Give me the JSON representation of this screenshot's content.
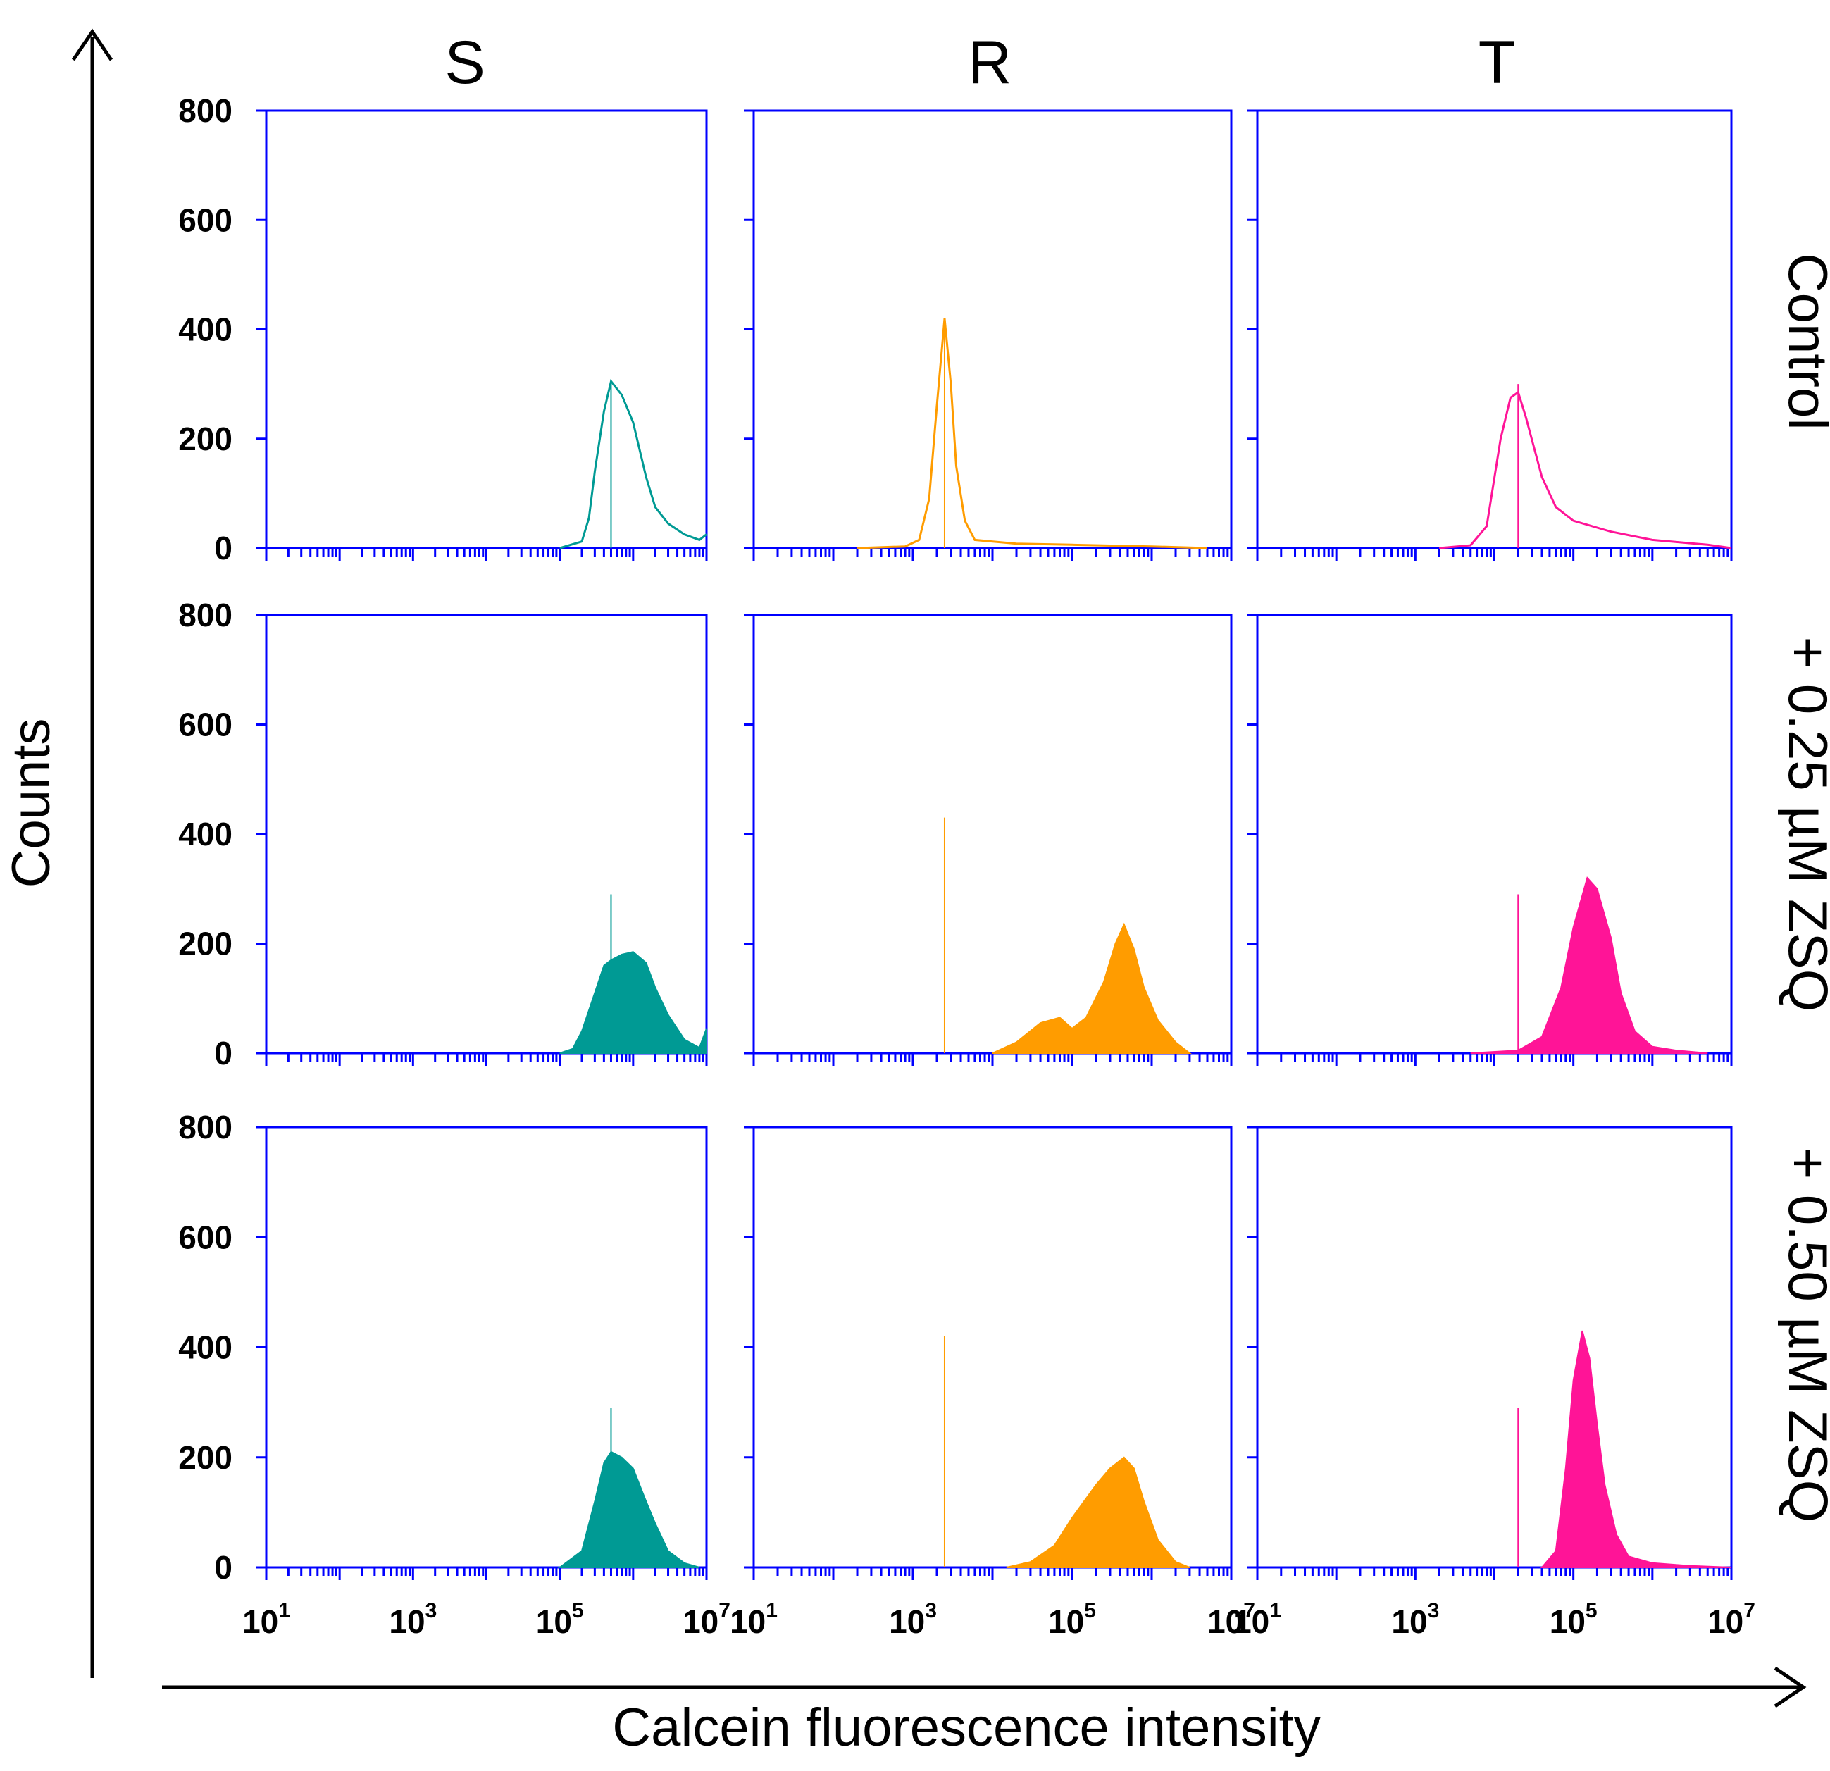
{
  "colors": {
    "S": "#009a94",
    "R": "#ff9c00",
    "T": "#ff1497",
    "frame": "#0000ff",
    "axis": "#000000"
  },
  "labels": {
    "columns": [
      "S",
      "R",
      "T"
    ],
    "rows": [
      "Control",
      "+ 0.25 µM ZSQ",
      "+ 0.50 µM ZSQ"
    ],
    "y_axis": "Counts",
    "x_axis": "Calcein fluorescence intensity",
    "y_ticks": [
      "0",
      "200",
      "400",
      "600",
      "800"
    ],
    "x_ticks": [
      {
        "base": "10",
        "exp": "1"
      },
      {
        "base": "10",
        "exp": "3"
      },
      {
        "base": "10",
        "exp": "5"
      },
      {
        "base": "10",
        "exp": "7"
      }
    ]
  },
  "chart_data": {
    "type": "histogram-grid",
    "xlabel": "Calcein fluorescence intensity",
    "ylabel": "Counts",
    "x_scale": "log10",
    "xlim": [
      10,
      10000000
    ],
    "ylim": [
      0,
      800
    ],
    "panels": [
      {
        "row": "Control",
        "column": "S",
        "style": "line",
        "marker_x": 500000,
        "marker_height": 300,
        "points": [
          [
            100000,
            0
          ],
          [
            200000,
            12
          ],
          [
            250000,
            55
          ],
          [
            300000,
            140
          ],
          [
            400000,
            250
          ],
          [
            500000,
            305
          ],
          [
            700000,
            280
          ],
          [
            1000000,
            230
          ],
          [
            1500000,
            130
          ],
          [
            2000000,
            75
          ],
          [
            3000000,
            45
          ],
          [
            5000000,
            25
          ],
          [
            8000000,
            15
          ],
          [
            10000000,
            25
          ]
        ]
      },
      {
        "row": "Control",
        "column": "R",
        "style": "line",
        "marker_x": 2500,
        "marker_height": 420,
        "points": [
          [
            200,
            0
          ],
          [
            800,
            3
          ],
          [
            1200,
            15
          ],
          [
            1600,
            90
          ],
          [
            2000,
            260
          ],
          [
            2500,
            420
          ],
          [
            3000,
            300
          ],
          [
            3500,
            150
          ],
          [
            4500,
            50
          ],
          [
            6000,
            15
          ],
          [
            20000,
            8
          ],
          [
            100000,
            6
          ],
          [
            1000000,
            3
          ],
          [
            5000000,
            0
          ]
        ]
      },
      {
        "row": "Control",
        "column": "T",
        "style": "line",
        "marker_x": 20000,
        "marker_height": 300,
        "points": [
          [
            2000,
            0
          ],
          [
            5000,
            5
          ],
          [
            8000,
            40
          ],
          [
            12000,
            200
          ],
          [
            16000,
            275
          ],
          [
            20000,
            285
          ],
          [
            25000,
            240
          ],
          [
            40000,
            130
          ],
          [
            60000,
            75
          ],
          [
            100000,
            50
          ],
          [
            300000,
            30
          ],
          [
            1000000,
            15
          ],
          [
            5000000,
            6
          ],
          [
            10000000,
            0
          ]
        ]
      },
      {
        "row": "+ 0.25 µM ZSQ",
        "column": "S",
        "style": "filled",
        "marker_x": 500000,
        "marker_height": 290,
        "points": [
          [
            100000,
            0
          ],
          [
            150000,
            8
          ],
          [
            200000,
            40
          ],
          [
            300000,
            110
          ],
          [
            400000,
            160
          ],
          [
            500000,
            170
          ],
          [
            700000,
            180
          ],
          [
            1000000,
            185
          ],
          [
            1500000,
            165
          ],
          [
            2000000,
            120
          ],
          [
            3000000,
            70
          ],
          [
            5000000,
            25
          ],
          [
            8000000,
            10
          ],
          [
            10000000,
            45
          ]
        ]
      },
      {
        "row": "+ 0.25 µM ZSQ",
        "column": "R",
        "style": "filled",
        "marker_x": 2500,
        "marker_height": 430,
        "points": [
          [
            10000,
            0
          ],
          [
            20000,
            20
          ],
          [
            40000,
            55
          ],
          [
            70000,
            65
          ],
          [
            100000,
            45
          ],
          [
            150000,
            65
          ],
          [
            250000,
            130
          ],
          [
            350000,
            200
          ],
          [
            450000,
            235
          ],
          [
            600000,
            190
          ],
          [
            800000,
            120
          ],
          [
            1200000,
            60
          ],
          [
            2000000,
            20
          ],
          [
            3000000,
            0
          ]
        ]
      },
      {
        "row": "+ 0.25 µM ZSQ",
        "column": "T",
        "style": "filled",
        "marker_x": 20000,
        "marker_height": 290,
        "points": [
          [
            5000,
            0
          ],
          [
            20000,
            5
          ],
          [
            40000,
            30
          ],
          [
            70000,
            120
          ],
          [
            100000,
            230
          ],
          [
            150000,
            320
          ],
          [
            200000,
            300
          ],
          [
            300000,
            210
          ],
          [
            400000,
            110
          ],
          [
            600000,
            40
          ],
          [
            1000000,
            12
          ],
          [
            2000000,
            5
          ],
          [
            5000000,
            0
          ]
        ]
      },
      {
        "row": "+ 0.50 µM ZSQ",
        "column": "S",
        "style": "filled",
        "marker_x": 500000,
        "marker_height": 290,
        "points": [
          [
            100000,
            0
          ],
          [
            200000,
            30
          ],
          [
            300000,
            120
          ],
          [
            400000,
            190
          ],
          [
            500000,
            210
          ],
          [
            700000,
            200
          ],
          [
            1000000,
            180
          ],
          [
            1500000,
            120
          ],
          [
            2000000,
            80
          ],
          [
            3000000,
            30
          ],
          [
            5000000,
            8
          ],
          [
            8000000,
            0
          ]
        ]
      },
      {
        "row": "+ 0.50 µM ZSQ",
        "column": "R",
        "style": "filled",
        "marker_x": 2500,
        "marker_height": 420,
        "points": [
          [
            15000,
            0
          ],
          [
            30000,
            10
          ],
          [
            60000,
            40
          ],
          [
            100000,
            90
          ],
          [
            200000,
            150
          ],
          [
            300000,
            180
          ],
          [
            450000,
            200
          ],
          [
            600000,
            180
          ],
          [
            800000,
            120
          ],
          [
            1200000,
            50
          ],
          [
            2000000,
            10
          ],
          [
            3000000,
            0
          ]
        ]
      },
      {
        "row": "+ 0.50 µM ZSQ",
        "column": "T",
        "style": "filled",
        "marker_x": 20000,
        "marker_height": 290,
        "points": [
          [
            40000,
            0
          ],
          [
            60000,
            30
          ],
          [
            80000,
            180
          ],
          [
            100000,
            340
          ],
          [
            130000,
            430
          ],
          [
            160000,
            380
          ],
          [
            200000,
            260
          ],
          [
            250000,
            150
          ],
          [
            350000,
            60
          ],
          [
            500000,
            20
          ],
          [
            1000000,
            8
          ],
          [
            3000000,
            3
          ],
          [
            10000000,
            0
          ]
        ]
      }
    ]
  }
}
